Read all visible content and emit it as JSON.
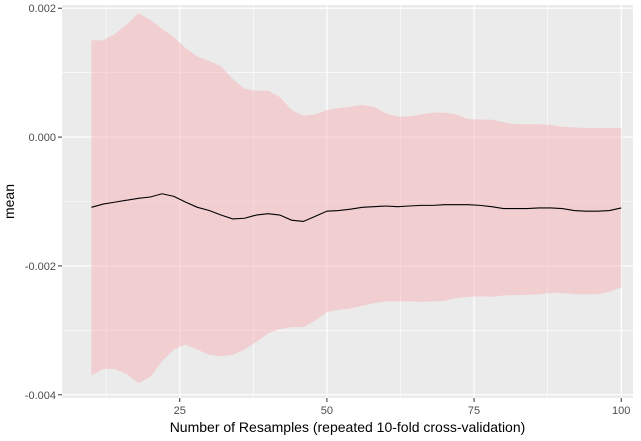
{
  "chart_data": {
    "type": "area",
    "title": "",
    "xlabel": "Number of Resamples (repeated 10-fold cross-validation)",
    "ylabel": "mean",
    "xlim": [
      5,
      102
    ],
    "ylim": [
      -0.00405,
      0.00205
    ],
    "x_ticks": [
      25,
      50,
      75,
      100
    ],
    "x_tick_labels": [
      "25",
      "50",
      "75",
      "100"
    ],
    "y_ticks": [
      0.002,
      0.0,
      -0.002,
      -0.004
    ],
    "y_tick_labels": [
      "0.002",
      "0.000",
      "-0.002",
      "-0.004"
    ],
    "grid": true,
    "legend": "none",
    "colors": {
      "panel_background": "#ebebeb",
      "gridline": "#ffffff",
      "ribbon_fill": "#f8b4b8",
      "line": "#000000",
      "tick_label": "#4d4d4d",
      "axis_title": "#000000"
    },
    "series": [
      {
        "x": [
          10,
          12,
          14,
          16,
          18,
          20,
          22,
          24,
          26,
          28,
          30,
          32,
          34,
          36,
          38,
          40,
          42,
          44,
          46,
          48,
          50,
          52,
          54,
          56,
          58,
          60,
          62,
          64,
          66,
          68,
          70,
          72,
          74,
          76,
          78,
          80,
          82,
          84,
          86,
          88,
          90,
          92,
          94,
          96,
          98,
          100
        ],
        "mean": [
          -0.00109,
          -0.00104,
          -0.00101,
          -0.00098,
          -0.00095,
          -0.00093,
          -0.00088,
          -0.00092,
          -0.00101,
          -0.00109,
          -0.00114,
          -0.00121,
          -0.00127,
          -0.00126,
          -0.00121,
          -0.00119,
          -0.00121,
          -0.00129,
          -0.00131,
          -0.00123,
          -0.00115,
          -0.00114,
          -0.00112,
          -0.00109,
          -0.00108,
          -0.00107,
          -0.00108,
          -0.00107,
          -0.00106,
          -0.00106,
          -0.00105,
          -0.00105,
          -0.00105,
          -0.00106,
          -0.00108,
          -0.00111,
          -0.00111,
          -0.00111,
          -0.0011,
          -0.0011,
          -0.00111,
          -0.00114,
          -0.00115,
          -0.00115,
          -0.00114,
          -0.0011
        ],
        "upper": [
          0.0015,
          0.0015,
          0.0016,
          0.00175,
          0.00192,
          0.00182,
          0.00168,
          0.00155,
          0.00138,
          0.00125,
          0.00118,
          0.0011,
          0.0009,
          0.00075,
          0.00072,
          0.00072,
          0.00062,
          0.00042,
          0.00033,
          0.00035,
          0.00042,
          0.00045,
          0.00047,
          0.0005,
          0.00047,
          0.00037,
          0.00032,
          0.00032,
          0.00035,
          0.00038,
          0.00038,
          0.00035,
          0.00028,
          0.00027,
          0.00027,
          0.00023,
          0.0002,
          0.0002,
          0.0002,
          0.00019,
          0.00016,
          0.00015,
          0.00014,
          0.00014,
          0.00014,
          0.00014
        ],
        "lower": [
          -0.0037,
          -0.0036,
          -0.0036,
          -0.00368,
          -0.00382,
          -0.00372,
          -0.00348,
          -0.0033,
          -0.00322,
          -0.0033,
          -0.00338,
          -0.0034,
          -0.00338,
          -0.0033,
          -0.00318,
          -0.00305,
          -0.00298,
          -0.00295,
          -0.00295,
          -0.00285,
          -0.00272,
          -0.00268,
          -0.00266,
          -0.00262,
          -0.00258,
          -0.00255,
          -0.00255,
          -0.00255,
          -0.00256,
          -0.00255,
          -0.00254,
          -0.0025,
          -0.00248,
          -0.00247,
          -0.00248,
          -0.00246,
          -0.00245,
          -0.00245,
          -0.00244,
          -0.00242,
          -0.00242,
          -0.00244,
          -0.00244,
          -0.00244,
          -0.0024,
          -0.00233
        ]
      }
    ]
  }
}
